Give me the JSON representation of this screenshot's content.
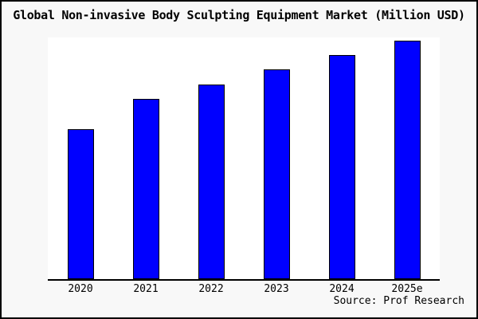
{
  "title": "Global Non-invasive Body Sculpting Equipment Market (Million USD)",
  "source_note": "Source: Prof Research",
  "colors": {
    "bar_fill": "#0000ff",
    "bar_border": "#000000",
    "axis": "#000000",
    "background": "#f8f8f8",
    "plot_background": "#ffffff"
  },
  "chart_data": {
    "type": "bar",
    "title": "Global Non-invasive Body Sculpting Equipment Market (Million USD)",
    "categories": [
      "2020",
      "2021",
      "2022",
      "2023",
      "2024",
      "2025e"
    ],
    "values": [
      62.8,
      75.4,
      81.5,
      88.0,
      93.8,
      100
    ],
    "values_note": "No y-axis scale shown in chart; values are estimated bar heights relative to the tallest bar (2025e = 100)",
    "xlabel": "",
    "ylabel": "",
    "legend": null,
    "grid": false,
    "spines": "bottom-only",
    "max_bar_height_pct": 98.8,
    "source_label": "Source: Prof Research"
  }
}
